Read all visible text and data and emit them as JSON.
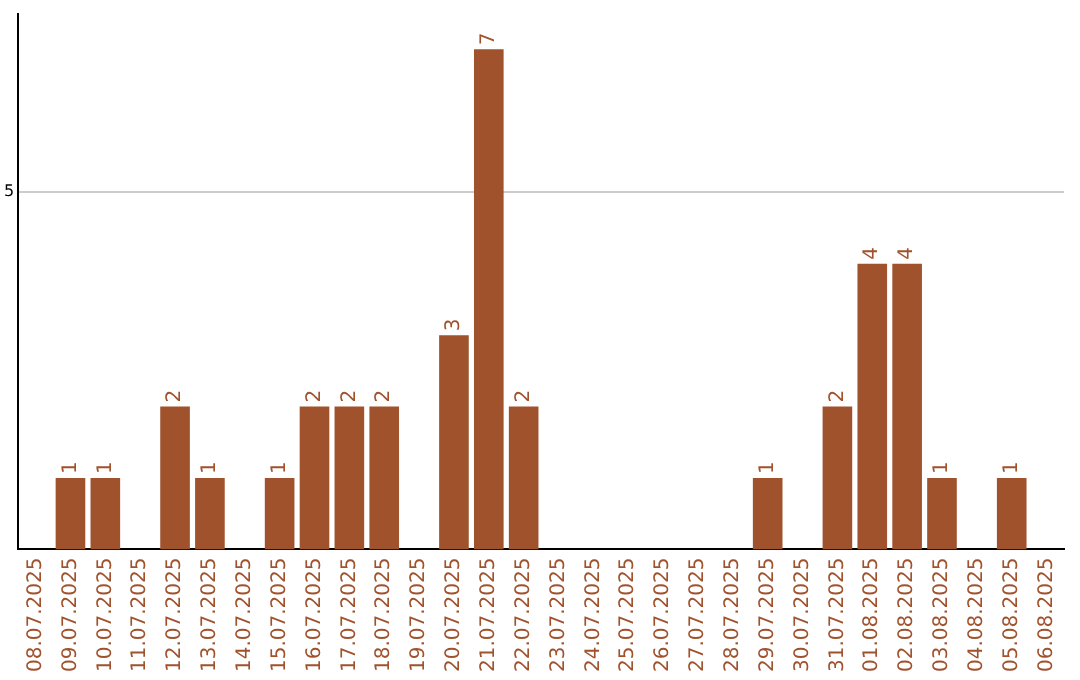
{
  "chart_data": {
    "type": "bar",
    "categories": [
      "08.07.2025",
      "09.07.2025",
      "10.07.2025",
      "11.07.2025",
      "12.07.2025",
      "13.07.2025",
      "14.07.2025",
      "15.07.2025",
      "16.07.2025",
      "17.07.2025",
      "18.07.2025",
      "19.07.2025",
      "20.07.2025",
      "21.07.2025",
      "22.07.2025",
      "23.07.2025",
      "24.07.2025",
      "25.07.2025",
      "26.07.2025",
      "27.07.2025",
      "28.07.2025",
      "29.07.2025",
      "30.07.2025",
      "31.07.2025",
      "01.08.2025",
      "02.08.2025",
      "03.08.2025",
      "04.08.2025",
      "05.08.2025",
      "06.08.2025"
    ],
    "values": [
      0,
      1,
      1,
      0,
      2,
      1,
      0,
      1,
      2,
      2,
      2,
      0,
      3,
      7,
      2,
      0,
      0,
      0,
      0,
      0,
      0,
      1,
      0,
      2,
      4,
      4,
      1,
      0,
      1,
      0
    ],
    "value_labels": [
      null,
      "1",
      "1",
      null,
      "2",
      "1",
      null,
      "1",
      "2",
      "2",
      "2",
      null,
      "3",
      "7",
      "2",
      null,
      null,
      null,
      null,
      null,
      null,
      "1",
      null,
      "2",
      "4",
      "4",
      "1",
      null,
      "1",
      null
    ],
    "color": "#a0522d",
    "ylim": [
      0,
      7.5
    ],
    "yticks": [
      5
    ],
    "grid": "y",
    "legend": false
  }
}
